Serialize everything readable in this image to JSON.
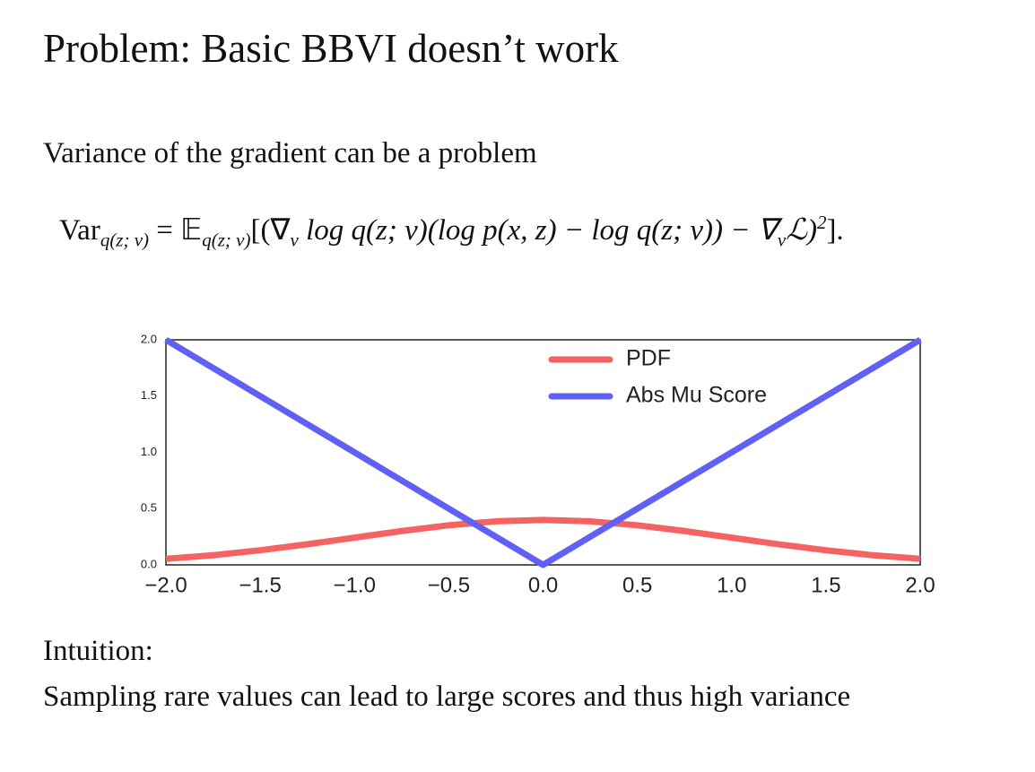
{
  "title": "Problem:  Basic BBVI doesn’t work",
  "subtitle": "Variance of the gradient can be a problem",
  "formula": [
    "Var",
    "q(z; ν)",
    " = 𝔼",
    "q(z; ν)",
    "[(∇",
    "ν",
    " log q(z; ν)(log p(x, z) − log q(z; ν)) − ∇",
    "ν",
    "ℒ)",
    "2",
    "]."
  ],
  "intuition": {
    "heading": "Intuition:",
    "text": "Sampling rare values can lead to large scores and thus high variance"
  },
  "chart_data": {
    "type": "line",
    "x": [
      -2,
      -1.75,
      -1.5,
      -1.25,
      -1,
      -0.75,
      -0.5,
      -0.25,
      0,
      0.25,
      0.5,
      0.75,
      1,
      1.25,
      1.5,
      1.75,
      2
    ],
    "series": [
      {
        "name": "PDF",
        "color": "#f56262",
        "values": [
          0.054,
          0.086,
          0.13,
          0.183,
          0.242,
          0.301,
          0.352,
          0.387,
          0.399,
          0.387,
          0.352,
          0.301,
          0.242,
          0.183,
          0.13,
          0.086,
          0.054
        ]
      },
      {
        "name": "Abs Mu Score",
        "color": "#6060f5",
        "values": [
          2,
          1.75,
          1.5,
          1.25,
          1,
          0.75,
          0.5,
          0.25,
          0,
          0.25,
          0.5,
          0.75,
          1,
          1.25,
          1.5,
          1.75,
          2
        ]
      }
    ],
    "xlim": [
      -2,
      2
    ],
    "ylim": [
      0,
      2
    ],
    "xticks": [
      {
        "value": -2,
        "label": "−2.0"
      },
      {
        "value": -1.5,
        "label": "−1.5"
      },
      {
        "value": -1,
        "label": "−1.0"
      },
      {
        "value": -0.5,
        "label": "−0.5"
      },
      {
        "value": 0,
        "label": "0.0"
      },
      {
        "value": 0.5,
        "label": "0.5"
      },
      {
        "value": 1,
        "label": "1.0"
      },
      {
        "value": 1.5,
        "label": "1.5"
      },
      {
        "value": 2,
        "label": "2.0"
      }
    ],
    "yticks": [
      {
        "value": 0,
        "label": "0.0"
      },
      {
        "value": 0.5,
        "label": "0.5"
      },
      {
        "value": 1,
        "label": "1.0"
      },
      {
        "value": 1.5,
        "label": "1.5"
      },
      {
        "value": 2,
        "label": "2.0"
      }
    ],
    "grid": false,
    "legend": "upper-center"
  }
}
